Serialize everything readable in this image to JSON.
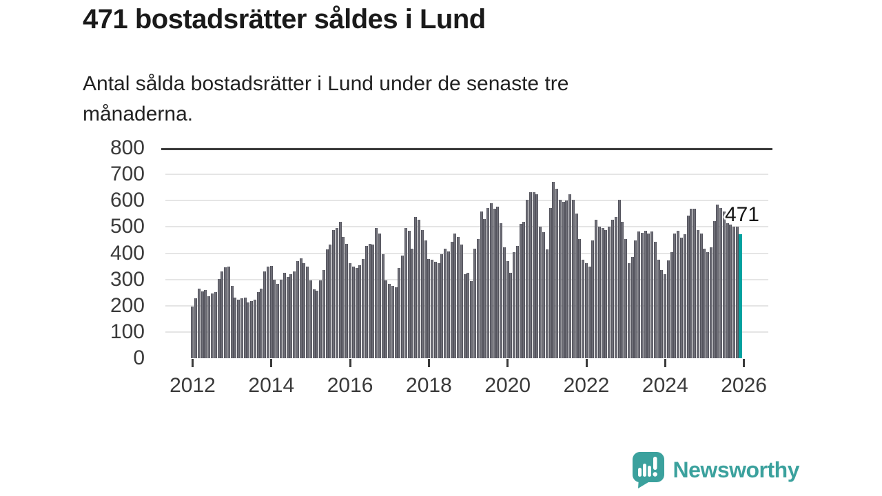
{
  "header": {
    "title": "471 bostadsrätter såldes i Lund",
    "subtitle": "Antal sålda bostadsrätter i Lund under de senaste tre\nmånaderna."
  },
  "chart_data": {
    "type": "bar",
    "title": "471 bostadsrätter såldes i Lund",
    "subtitle": "Antal sålda bostadsrätter i Lund under de senaste tre månaderna.",
    "x_start": "2012-01",
    "x_interval": "monthly",
    "ylim": [
      0,
      800
    ],
    "yticks": [
      0,
      100,
      200,
      300,
      400,
      500,
      600,
      700,
      800
    ],
    "xticks": [
      "2012",
      "2014",
      "2016",
      "2018",
      "2020",
      "2022",
      "2024",
      "2026"
    ],
    "grid": true,
    "legend": false,
    "bar_color": "#6f6f78",
    "bar_edge_color": "#54545d",
    "highlight_color": "#00a2a0",
    "annotation": {
      "text": "471",
      "value": 471
    },
    "values": [
      197,
      228,
      266,
      254,
      260,
      236,
      247,
      252,
      302,
      331,
      345,
      348,
      275,
      230,
      224,
      228,
      231,
      213,
      217,
      222,
      252,
      265,
      331,
      350,
      352,
      300,
      283,
      300,
      324,
      309,
      319,
      331,
      370,
      381,
      361,
      348,
      296,
      262,
      256,
      296,
      335,
      414,
      432,
      489,
      497,
      519,
      462,
      436,
      361,
      348,
      344,
      353,
      379,
      427,
      436,
      432,
      497,
      475,
      396,
      296,
      284,
      275,
      269,
      344,
      392,
      495,
      484,
      418,
      537,
      528,
      489,
      449,
      379,
      375,
      368,
      361,
      396,
      416,
      407,
      442,
      475,
      462,
      433,
      319,
      324,
      293,
      418,
      453,
      560,
      531,
      572,
      591,
      568,
      578,
      515,
      423,
      370,
      326,
      405,
      427,
      511,
      519,
      603,
      633,
      631,
      625,
      500,
      481,
      414,
      572,
      671,
      646,
      603,
      596,
      601,
      625,
      604,
      550,
      454,
      375,
      361,
      350,
      449,
      528,
      502,
      497,
      487,
      502,
      528,
      537,
      603,
      519,
      453,
      361,
      385,
      449,
      483,
      477,
      484,
      475,
      482,
      443,
      375,
      337,
      320,
      372,
      405,
      475,
      486,
      458,
      471,
      543,
      568,
      569,
      489,
      475,
      418,
      403,
      423,
      521,
      585,
      572,
      560,
      515,
      509,
      502,
      500,
      471
    ]
  },
  "branding": {
    "name": "Newsworthy",
    "color": "#3ba19d"
  }
}
